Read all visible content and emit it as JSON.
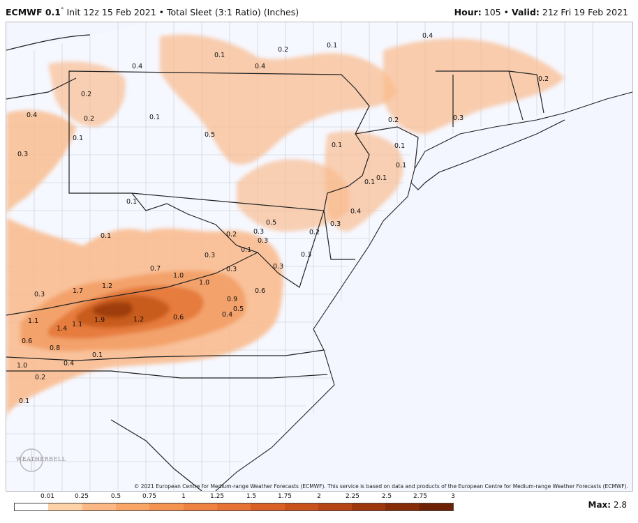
{
  "header": {
    "model": "ECMWF 0.1",
    "degree": "°",
    "init": "Init 12z 15 Feb 2021",
    "bullet": "•",
    "field": "Total Sleet (3:1 Ratio) (Inches)",
    "hour_label": "Hour:",
    "hour_value": "105",
    "valid_label": "Valid:",
    "valid_value": "21z Fri 19 Feb 2021"
  },
  "copyright": "© 2021 European Centre for Medium-range Weather Forecasts (ECMWF). This service is based on data and products of the European Centre for Medium-range Weather Forecasts (ECMWF).",
  "logo_text": "WEATHERBELL",
  "legend": {
    "ticks": [
      "0.01",
      "0.25",
      "0.5",
      "0.75",
      "1",
      "1.25",
      "1.5",
      "1.75",
      "2",
      "2.25",
      "2.5",
      "2.75",
      "3"
    ],
    "colors": [
      "#ffffff",
      "#fdd2a8",
      "#fbb784",
      "#f9a566",
      "#f49450",
      "#ee8341",
      "#e67234",
      "#da6126",
      "#c9521b",
      "#b54513",
      "#9e380c",
      "#862c07",
      "#6e2104"
    ]
  },
  "max": {
    "label": "Max:",
    "value": "2.8"
  },
  "colors": {
    "light": "#f9b98a",
    "mid": "#f3a068",
    "dark": "#e57a3a",
    "darker": "#c65a1e",
    "darkest": "#9a3a10",
    "ocean": "#f3f5ff",
    "state_line": "#222222",
    "county_line": "#b8bcc8"
  },
  "values": [
    {
      "t": "0.4"
    },
    {
      "t": "0.2"
    },
    {
      "t": "0.1"
    },
    {
      "t": "0.1"
    },
    {
      "t": "0.4"
    },
    {
      "t": "0.4"
    },
    {
      "t": "0.2"
    },
    {
      "t": "0.2"
    },
    {
      "t": "0.1"
    },
    {
      "t": "0.4"
    },
    {
      "t": "0.2"
    },
    {
      "t": "0.1"
    },
    {
      "t": "0.5"
    },
    {
      "t": "0.3"
    },
    {
      "t": "0.1"
    },
    {
      "t": "0.2"
    },
    {
      "t": "0.1"
    },
    {
      "t": "0.3"
    },
    {
      "t": "0.1"
    },
    {
      "t": "0.1"
    },
    {
      "t": "0.1"
    },
    {
      "t": "0.4"
    },
    {
      "t": "0.5"
    },
    {
      "t": "0.3"
    },
    {
      "t": "0.2"
    },
    {
      "t": "0.3"
    },
    {
      "t": "0.1"
    },
    {
      "t": "0.2"
    },
    {
      "t": "0.3"
    },
    {
      "t": "0.3"
    },
    {
      "t": "0.3"
    },
    {
      "t": "0.3"
    },
    {
      "t": "0.7"
    },
    {
      "t": "1.0"
    },
    {
      "t": "1.0"
    },
    {
      "t": "0.3"
    },
    {
      "t": "0.6"
    },
    {
      "t": "0.9"
    },
    {
      "t": "0.5"
    },
    {
      "t": "0.4"
    },
    {
      "t": "0.1"
    },
    {
      "t": "0.3"
    },
    {
      "t": "1.7"
    },
    {
      "t": "1.2"
    },
    {
      "t": "1.9"
    },
    {
      "t": "1.2"
    },
    {
      "t": "0.6"
    },
    {
      "t": "1.1"
    },
    {
      "t": "1.4"
    },
    {
      "t": "1.1"
    },
    {
      "t": "0.6"
    },
    {
      "t": "0.8"
    },
    {
      "t": "0.1"
    },
    {
      "t": "1.0"
    },
    {
      "t": "0.4"
    },
    {
      "t": "0.2"
    },
    {
      "t": "0.1"
    },
    {
      "t": "0.1"
    }
  ]
}
